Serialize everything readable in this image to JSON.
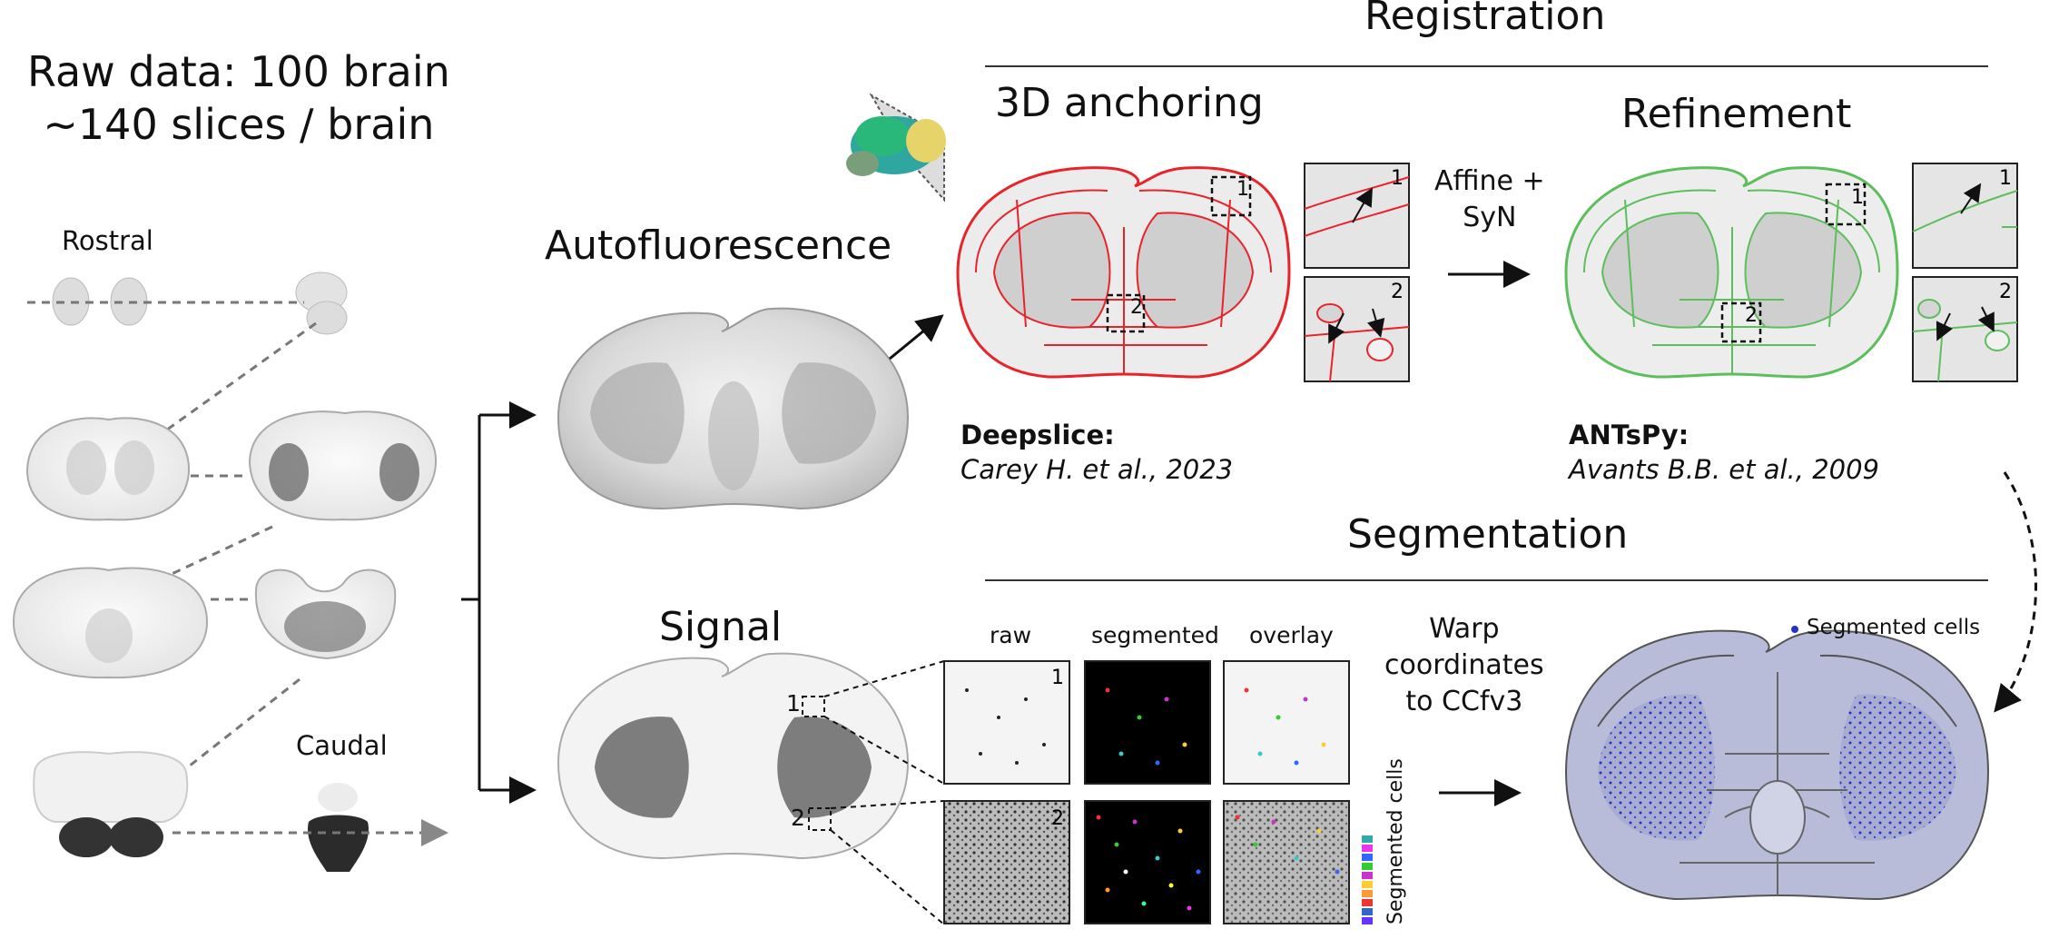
{
  "raw_title": "Raw data: 100 brain\n~140 slices / brain",
  "rostral_label": "Rostral",
  "caudal_label": "Caudal",
  "autofluorescence_label": "Autofluorescence",
  "signal_label": "Signal",
  "registration": {
    "title": "Registration",
    "anchoring_title": "3D anchoring",
    "refinement_title": "Refinement",
    "transform_label": "Affine +\nSyN",
    "deepslice_name": "Deepslice:",
    "deepslice_cite": "Carey H. et al., 2023",
    "antspy_name": "ANTsPy:",
    "antspy_cite": "Avants B.B. et al., 2009",
    "inset1": "1",
    "inset2": "2"
  },
  "segmentation": {
    "title": "Segmentation",
    "col_raw": "raw",
    "col_segmented": "segmented",
    "col_overlay": "overlay",
    "warp_label": "Warp\ncoordinates\nto CCfv3",
    "legend_label": "Segmented cells",
    "vertical_label": "Segmented cells",
    "inset1": "1",
    "inset2": "2"
  },
  "colors": {
    "atlas_red": "#e8242b",
    "atlas_green": "#5cbf5c",
    "cell_blue": "#2233cc",
    "overlay_purple": "#b8bcd8"
  }
}
